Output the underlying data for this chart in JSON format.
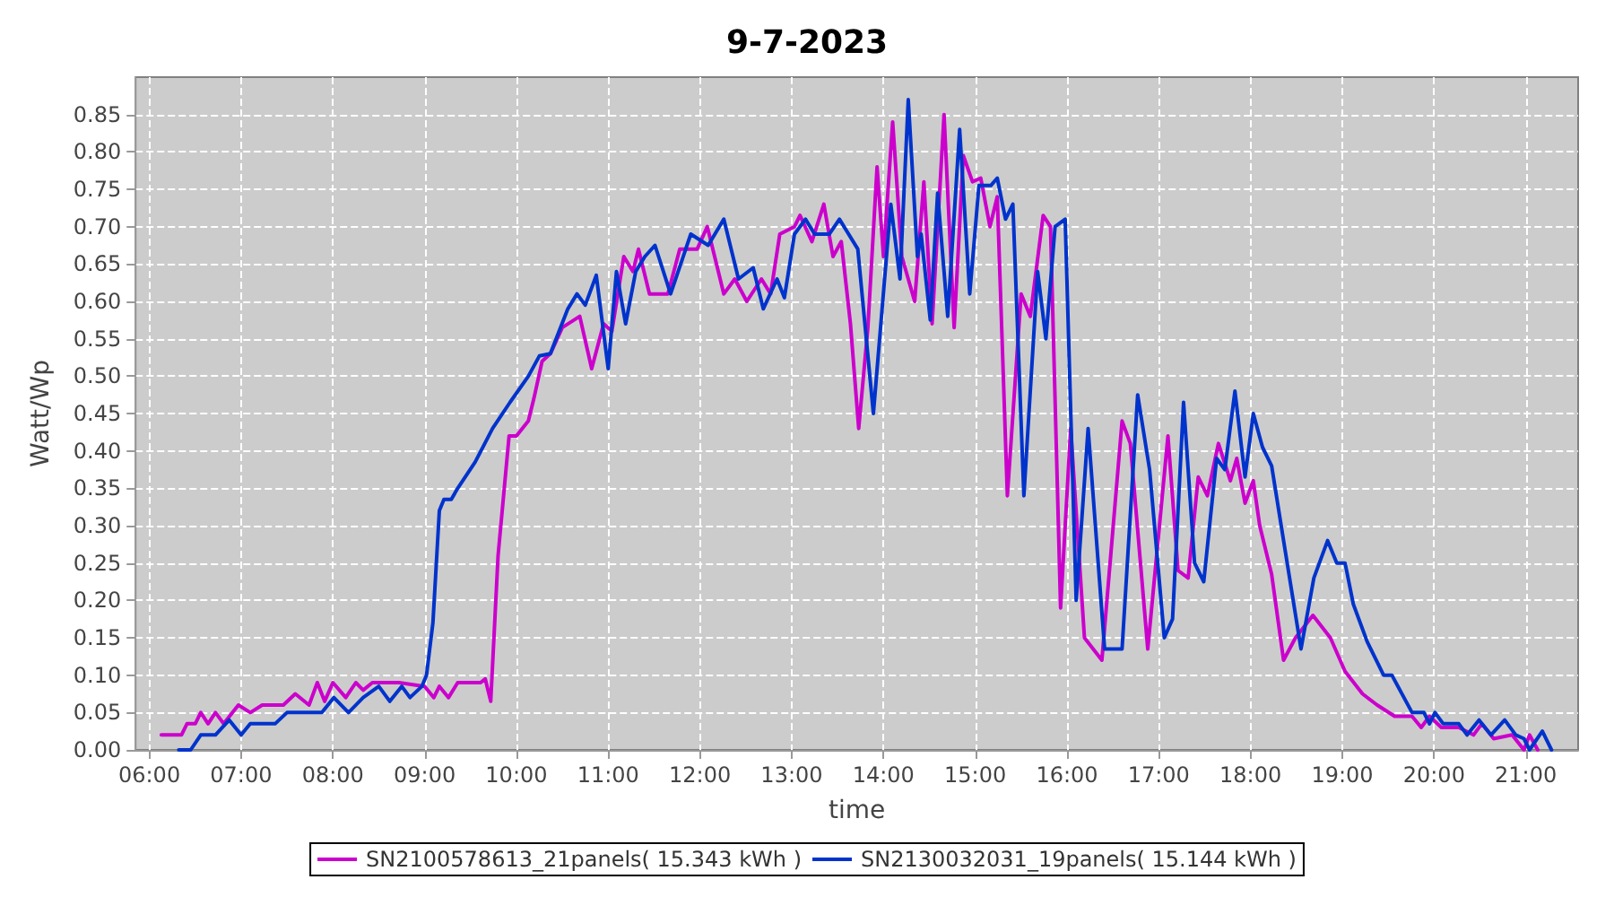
{
  "chart_data": {
    "type": "line",
    "title": "9-7-2023",
    "xlabel": "time",
    "ylabel": "Watt/Wp",
    "xlim": [
      5.85,
      21.57
    ],
    "ylim": [
      0,
      0.9
    ],
    "xticks": [
      {
        "value": 6,
        "label": "06:00"
      },
      {
        "value": 7,
        "label": "07:00"
      },
      {
        "value": 8,
        "label": "08:00"
      },
      {
        "value": 9,
        "label": "09:00"
      },
      {
        "value": 10,
        "label": "10:00"
      },
      {
        "value": 11,
        "label": "11:00"
      },
      {
        "value": 12,
        "label": "12:00"
      },
      {
        "value": 13,
        "label": "13:00"
      },
      {
        "value": 14,
        "label": "14:00"
      },
      {
        "value": 15,
        "label": "15:00"
      },
      {
        "value": 16,
        "label": "16:00"
      },
      {
        "value": 17,
        "label": "17:00"
      },
      {
        "value": 18,
        "label": "18:00"
      },
      {
        "value": 19,
        "label": "19:00"
      },
      {
        "value": 20,
        "label": "20:00"
      },
      {
        "value": 21,
        "label": "21:00"
      }
    ],
    "yticks": [
      {
        "value": 0,
        "label": "0.00"
      },
      {
        "value": 0.05,
        "label": "0.05"
      },
      {
        "value": 0.1,
        "label": "0.10"
      },
      {
        "value": 0.15,
        "label": "0.15"
      },
      {
        "value": 0.2,
        "label": "0.20"
      },
      {
        "value": 0.25,
        "label": "0.25"
      },
      {
        "value": 0.3,
        "label": "0.30"
      },
      {
        "value": 0.35,
        "label": "0.35"
      },
      {
        "value": 0.4,
        "label": "0.40"
      },
      {
        "value": 0.45,
        "label": "0.45"
      },
      {
        "value": 0.5,
        "label": "0.50"
      },
      {
        "value": 0.55,
        "label": "0.55"
      },
      {
        "value": 0.6,
        "label": "0.60"
      },
      {
        "value": 0.65,
        "label": "0.65"
      },
      {
        "value": 0.7,
        "label": "0.70"
      },
      {
        "value": 0.75,
        "label": "0.75"
      },
      {
        "value": 0.8,
        "label": "0.80"
      },
      {
        "value": 0.85,
        "label": "0.85"
      }
    ],
    "grid": true,
    "legend": "bottom",
    "line_style": "solid",
    "series": [
      {
        "name": "SN2100578613_21panels( 15.343 kWh )",
        "color": "#cc00cc",
        "x": [
          6.13,
          6.35,
          6.41,
          6.5,
          6.56,
          6.64,
          6.72,
          6.81,
          6.97,
          7.1,
          7.23,
          7.46,
          7.59,
          7.74,
          7.83,
          7.91,
          8.0,
          8.14,
          8.25,
          8.33,
          8.43,
          8.72,
          9.0,
          9.1,
          9.16,
          9.26,
          9.36,
          9.61,
          9.66,
          9.72,
          9.8,
          9.92,
          10.0,
          10.13,
          10.19,
          10.28,
          10.37,
          10.5,
          10.69,
          10.82,
          10.95,
          11.04,
          11.17,
          11.27,
          11.33,
          11.45,
          11.65,
          11.78,
          11.97,
          12.08,
          12.16,
          12.26,
          12.38,
          12.51,
          12.67,
          12.77,
          12.87,
          13.03,
          13.09,
          13.22,
          13.35,
          13.45,
          13.54,
          13.64,
          13.73,
          13.83,
          13.93,
          14.0,
          14.1,
          14.2,
          14.34,
          14.44,
          14.53,
          14.66,
          14.77,
          14.87,
          14.97,
          15.06,
          15.16,
          15.24,
          15.35,
          15.5,
          15.6,
          15.74,
          15.82,
          15.93,
          16.04,
          16.19,
          16.38,
          16.6,
          16.69,
          16.88,
          17.1,
          17.21,
          17.32,
          17.43,
          17.53,
          17.65,
          17.78,
          17.85,
          17.94,
          18.03,
          18.1,
          18.23,
          18.36,
          18.49,
          18.68,
          18.87,
          19.03,
          19.22,
          19.38,
          19.57,
          19.76,
          19.86,
          19.95,
          20.08,
          20.27,
          20.43,
          20.52,
          20.65,
          20.85,
          20.98,
          21.04,
          21.13
        ],
        "values": [
          0.02,
          0.02,
          0.035,
          0.035,
          0.05,
          0.035,
          0.05,
          0.035,
          0.06,
          0.05,
          0.06,
          0.06,
          0.075,
          0.06,
          0.09,
          0.065,
          0.09,
          0.07,
          0.09,
          0.08,
          0.09,
          0.09,
          0.085,
          0.07,
          0.085,
          0.07,
          0.09,
          0.09,
          0.095,
          0.065,
          0.26,
          0.42,
          0.42,
          0.44,
          0.47,
          0.52,
          0.53,
          0.565,
          0.58,
          0.51,
          0.57,
          0.56,
          0.66,
          0.64,
          0.67,
          0.61,
          0.61,
          0.67,
          0.67,
          0.7,
          0.66,
          0.61,
          0.63,
          0.6,
          0.63,
          0.61,
          0.69,
          0.7,
          0.715,
          0.68,
          0.73,
          0.66,
          0.68,
          0.57,
          0.43,
          0.565,
          0.78,
          0.66,
          0.84,
          0.66,
          0.6,
          0.76,
          0.57,
          0.85,
          0.565,
          0.795,
          0.76,
          0.765,
          0.7,
          0.74,
          0.34,
          0.61,
          0.58,
          0.715,
          0.7,
          0.19,
          0.43,
          0.15,
          0.12,
          0.44,
          0.41,
          0.135,
          0.42,
          0.24,
          0.23,
          0.365,
          0.34,
          0.41,
          0.36,
          0.39,
          0.33,
          0.36,
          0.3,
          0.235,
          0.12,
          0.15,
          0.18,
          0.15,
          0.105,
          0.075,
          0.06,
          0.045,
          0.045,
          0.03,
          0.045,
          0.03,
          0.03,
          0.02,
          0.035,
          0.015,
          0.02,
          0,
          0.02,
          0
        ]
      },
      {
        "name": "SN2130032031_19panels( 15.144 kWh )",
        "color": "#0033cc",
        "x": [
          6.32,
          6.45,
          6.56,
          6.72,
          6.87,
          7.0,
          7.1,
          7.37,
          7.5,
          7.88,
          8.01,
          8.17,
          8.33,
          8.5,
          8.62,
          8.75,
          8.84,
          8.97,
          9.02,
          9.09,
          9.16,
          9.21,
          9.29,
          9.36,
          9.55,
          9.74,
          9.93,
          10.13,
          10.25,
          10.37,
          10.56,
          10.66,
          10.75,
          10.87,
          11.0,
          11.09,
          11.19,
          11.3,
          11.4,
          11.51,
          11.68,
          11.9,
          12.09,
          12.26,
          12.42,
          12.58,
          12.69,
          12.84,
          12.92,
          13.03,
          13.15,
          13.25,
          13.41,
          13.52,
          13.72,
          13.89,
          14.08,
          14.18,
          14.27,
          14.37,
          14.41,
          14.51,
          14.59,
          14.7,
          14.83,
          14.94,
          15.04,
          15.17,
          15.24,
          15.33,
          15.41,
          15.53,
          15.68,
          15.77,
          15.87,
          15.98,
          16.1,
          16.23,
          16.41,
          16.6,
          16.77,
          16.9,
          17.06,
          17.15,
          17.27,
          17.39,
          17.49,
          17.63,
          17.72,
          17.83,
          17.94,
          18.03,
          18.13,
          18.23,
          18.36,
          18.55,
          18.69,
          18.84,
          18.94,
          19.03,
          19.12,
          19.27,
          19.45,
          19.54,
          19.76,
          19.89,
          19.95,
          20.01,
          20.1,
          20.27,
          20.36,
          20.49,
          20.62,
          20.77,
          20.89,
          20.98,
          21.04,
          21.18,
          21.28
        ],
        "values": [
          0,
          0,
          0.02,
          0.02,
          0.04,
          0.02,
          0.035,
          0.035,
          0.05,
          0.05,
          0.07,
          0.05,
          0.07,
          0.085,
          0.065,
          0.085,
          0.07,
          0.085,
          0.1,
          0.17,
          0.32,
          0.335,
          0.335,
          0.35,
          0.385,
          0.43,
          0.465,
          0.5,
          0.527,
          0.53,
          0.59,
          0.61,
          0.595,
          0.635,
          0.51,
          0.64,
          0.57,
          0.64,
          0.66,
          0.675,
          0.61,
          0.69,
          0.675,
          0.71,
          0.63,
          0.645,
          0.59,
          0.63,
          0.605,
          0.69,
          0.71,
          0.69,
          0.69,
          0.71,
          0.67,
          0.45,
          0.73,
          0.63,
          0.87,
          0.66,
          0.69,
          0.575,
          0.745,
          0.58,
          0.83,
          0.61,
          0.755,
          0.755,
          0.765,
          0.71,
          0.73,
          0.34,
          0.64,
          0.55,
          0.7,
          0.71,
          0.2,
          0.43,
          0.135,
          0.135,
          0.475,
          0.375,
          0.15,
          0.175,
          0.465,
          0.25,
          0.225,
          0.39,
          0.375,
          0.48,
          0.365,
          0.45,
          0.405,
          0.38,
          0.28,
          0.135,
          0.23,
          0.28,
          0.25,
          0.25,
          0.195,
          0.145,
          0.1,
          0.1,
          0.05,
          0.05,
          0.035,
          0.05,
          0.035,
          0.035,
          0.02,
          0.04,
          0.02,
          0.04,
          0.02,
          0.015,
          0,
          0.025,
          0
        ]
      }
    ]
  }
}
